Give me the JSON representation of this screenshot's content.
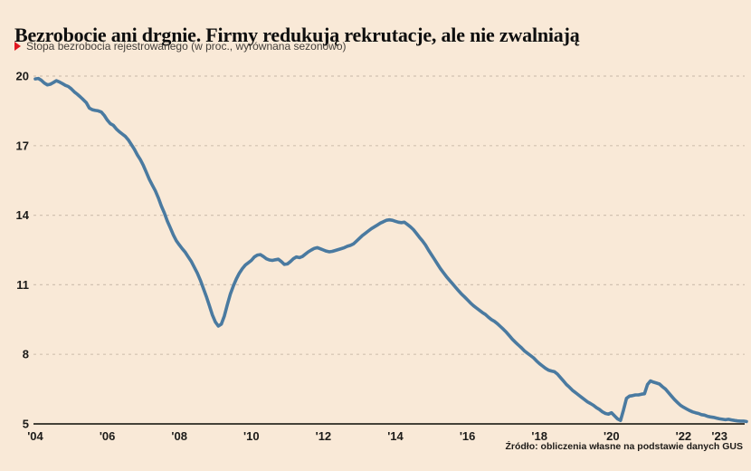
{
  "colors": {
    "background": "#f9e9d7",
    "line": "#4a7aa0",
    "grid": "#d2c2b1",
    "axis": "#454239",
    "accent_red": "#e0161f",
    "title_text": "#0e0e0e",
    "subtitle_text": "#44403b",
    "tick_text": "#1c1b19"
  },
  "chart_data": {
    "type": "line",
    "title": "Bezrobocie ani drgnie. Firmy redukują rekrutacje, ale nie zwalniają",
    "subtitle": "Stopa bezrobocia rejestrowanego (w proc., wyrównana sezonowo)",
    "source": "Źródło: obliczenia własne na podstawie danych GUS",
    "legend": "none",
    "grid": "horizontal-dashed",
    "y_ticks": [
      5,
      8,
      11,
      14,
      17,
      20
    ],
    "y_range": [
      5,
      20.5
    ],
    "x_range": [
      2004.0,
      2023.75
    ],
    "x_ticks": [
      {
        "year": 2004,
        "label": "'04"
      },
      {
        "year": 2006,
        "label": "'06"
      },
      {
        "year": 2008,
        "label": "'08"
      },
      {
        "year": 2010,
        "label": "'10"
      },
      {
        "year": 2012,
        "label": "'12"
      },
      {
        "year": 2014,
        "label": "'14"
      },
      {
        "year": 2016,
        "label": "'16"
      },
      {
        "year": 2018,
        "label": "'18"
      },
      {
        "year": 2020,
        "label": "'20"
      },
      {
        "year": 2022,
        "label": "'22"
      },
      {
        "year": 2023,
        "label": "'23"
      }
    ],
    "series": [
      {
        "name": "Stopa bezrobocia rejestrowanego (w proc., wyrównana sezonowo)",
        "start_year": 2004,
        "points_per_year": 12,
        "values": [
          19.88,
          19.9,
          19.82,
          19.7,
          19.62,
          19.65,
          19.72,
          19.8,
          19.75,
          19.68,
          19.6,
          19.55,
          19.45,
          19.32,
          19.22,
          19.1,
          18.98,
          18.85,
          18.62,
          18.55,
          18.52,
          18.5,
          18.45,
          18.3,
          18.1,
          17.95,
          17.88,
          17.72,
          17.6,
          17.5,
          17.4,
          17.25,
          17.05,
          16.85,
          16.6,
          16.4,
          16.15,
          15.85,
          15.55,
          15.3,
          15.05,
          14.75,
          14.4,
          14.1,
          13.75,
          13.45,
          13.15,
          12.9,
          12.72,
          12.55,
          12.4,
          12.2,
          12.0,
          11.75,
          11.5,
          11.2,
          10.85,
          10.5,
          10.1,
          9.7,
          9.4,
          9.22,
          9.3,
          9.65,
          10.15,
          10.6,
          10.95,
          11.25,
          11.5,
          11.7,
          11.85,
          11.95,
          12.05,
          12.2,
          12.28,
          12.3,
          12.22,
          12.12,
          12.07,
          12.05,
          12.08,
          12.1,
          12.0,
          11.88,
          11.9,
          12.0,
          12.12,
          12.2,
          12.17,
          12.22,
          12.32,
          12.42,
          12.5,
          12.57,
          12.6,
          12.55,
          12.5,
          12.45,
          12.42,
          12.44,
          12.48,
          12.52,
          12.56,
          12.6,
          12.66,
          12.7,
          12.76,
          12.88,
          13.0,
          13.12,
          13.22,
          13.32,
          13.42,
          13.5,
          13.58,
          13.66,
          13.72,
          13.78,
          13.8,
          13.78,
          13.74,
          13.7,
          13.68,
          13.7,
          13.6,
          13.5,
          13.38,
          13.22,
          13.05,
          12.9,
          12.72,
          12.5,
          12.3,
          12.1,
          11.9,
          11.7,
          11.52,
          11.35,
          11.2,
          11.05,
          10.9,
          10.75,
          10.6,
          10.48,
          10.35,
          10.22,
          10.1,
          10.0,
          9.9,
          9.8,
          9.72,
          9.6,
          9.5,
          9.42,
          9.32,
          9.2,
          9.08,
          8.95,
          8.8,
          8.65,
          8.52,
          8.4,
          8.28,
          8.15,
          8.05,
          7.95,
          7.85,
          7.72,
          7.6,
          7.5,
          7.4,
          7.32,
          7.28,
          7.25,
          7.15,
          7.0,
          6.85,
          6.7,
          6.58,
          6.45,
          6.35,
          6.25,
          6.15,
          6.05,
          5.95,
          5.88,
          5.8,
          5.7,
          5.62,
          5.52,
          5.45,
          5.42,
          5.48,
          5.35,
          5.22,
          5.15,
          5.6,
          6.1,
          6.2,
          6.22,
          6.25,
          6.25,
          6.28,
          6.3,
          6.7,
          6.85,
          6.8,
          6.76,
          6.72,
          6.6,
          6.5,
          6.35,
          6.2,
          6.05,
          5.92,
          5.8,
          5.72,
          5.65,
          5.58,
          5.52,
          5.48,
          5.45,
          5.4,
          5.38,
          5.33,
          5.3,
          5.28,
          5.25,
          5.22,
          5.2,
          5.18,
          5.2,
          5.17,
          5.15,
          5.13,
          5.12,
          5.12,
          5.1
        ]
      }
    ]
  }
}
